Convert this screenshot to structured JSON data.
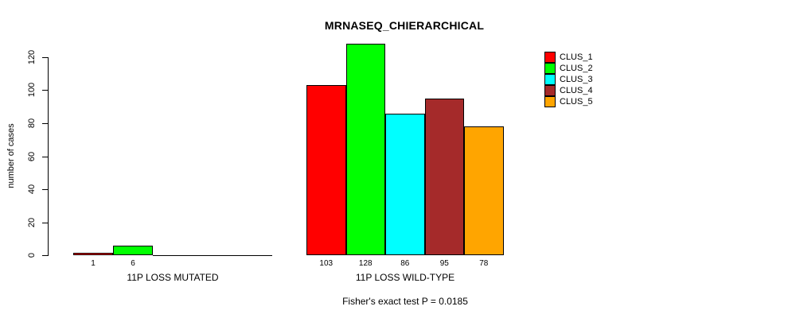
{
  "chart_data": {
    "type": "bar",
    "title": "MRNASEQ_CHIERARCHICAL",
    "ylabel": "number of cases",
    "ylim": [
      0,
      120
    ],
    "yticks": [
      0,
      20,
      40,
      60,
      80,
      100,
      120
    ],
    "grid": false,
    "legend_position": "top-right",
    "legend": [
      "CLUS_1",
      "CLUS_2",
      "CLUS_3",
      "CLUS_4",
      "CLUS_5"
    ],
    "series_colors": [
      "#FF0000",
      "#00FF00",
      "#00FFFF",
      "#A52A2A",
      "#FFA500"
    ],
    "groups": [
      {
        "label": "11P LOSS MUTATED",
        "values": [
          1,
          6,
          0,
          0,
          0
        ],
        "value_labels": [
          "1",
          "6",
          "",
          "",
          ""
        ]
      },
      {
        "label": "11P LOSS WILD-TYPE",
        "values": [
          103,
          128,
          86,
          95,
          78
        ],
        "value_labels": [
          "103",
          "128",
          "86",
          "95",
          "78"
        ]
      }
    ],
    "footnote": "Fisher's exact test P = 0.0185"
  }
}
